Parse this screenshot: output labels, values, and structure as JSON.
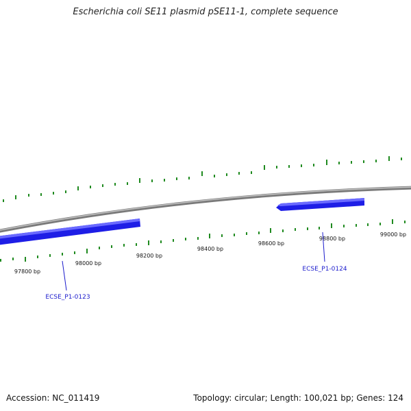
{
  "title": "Escherichia coli SE11 plasmid pSE11-1, complete sequence",
  "footer": {
    "accession": "Accession: NC_011419",
    "summary": "Topology: circular; Length: 100,021 bp; Genes: 124"
  },
  "scale": {
    "ticks": [
      "97800 bp",
      "98000 bp",
      "98200 bp",
      "98400 bp",
      "98600 bp",
      "98800 bp",
      "99000 bp"
    ]
  },
  "genes": [
    {
      "name": "ECSE_P1-0123",
      "strand": "forward"
    },
    {
      "name": "ECSE_P1-0124",
      "strand": "reverse"
    }
  ],
  "colors": {
    "backbone": "#8a8a8a",
    "gene_fill": "#1e1ee6",
    "gene_highlight": "#6a6aff",
    "tick_marks": "#1f8a1f",
    "gene_label": "#1a1acc"
  }
}
